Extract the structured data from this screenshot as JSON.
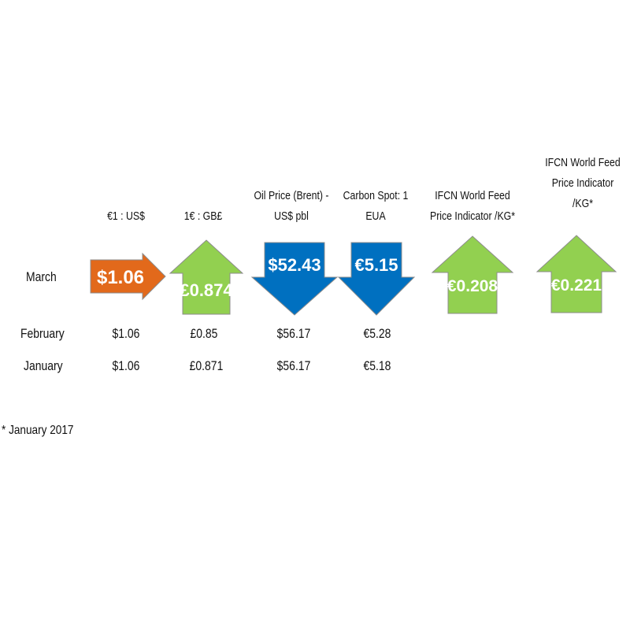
{
  "columns": [
    {
      "header": [
        "€1 : US$"
      ],
      "march": "$1.06",
      "direction": "right",
      "color": "#E2691B",
      "february": "$1.06",
      "january": "$1.06"
    },
    {
      "header": [
        "1€ : GB£"
      ],
      "march": "£0.874",
      "direction": "up",
      "color": "#92D050",
      "february": "£0.85",
      "january": "£0.871"
    },
    {
      "header": [
        "Oil Price (Brent) -",
        "US$ pbl"
      ],
      "march": "$52.43",
      "direction": "down",
      "color": "#0070C0",
      "february": "$56.17",
      "january": "$56.17"
    },
    {
      "header": [
        "Carbon Spot: 1",
        "EUA"
      ],
      "march": "€5.15",
      "direction": "down",
      "color": "#0070C0",
      "february": "€5.28",
      "january": "€5.18"
    },
    {
      "header": [
        "IFCN World Feed",
        "Price Indicator /KG*"
      ],
      "march": "€0.208",
      "direction": "up",
      "color": "#92D050",
      "february": "",
      "january": ""
    },
    {
      "header": [
        "IFCN World Feed",
        "Price Indicator",
        "/KG*"
      ],
      "march": "€0.221",
      "direction": "up",
      "color": "#92D050",
      "february": "",
      "january": ""
    }
  ],
  "rows": {
    "march": "March",
    "february": "February",
    "january": "January"
  },
  "footnote": "* January 2017"
}
